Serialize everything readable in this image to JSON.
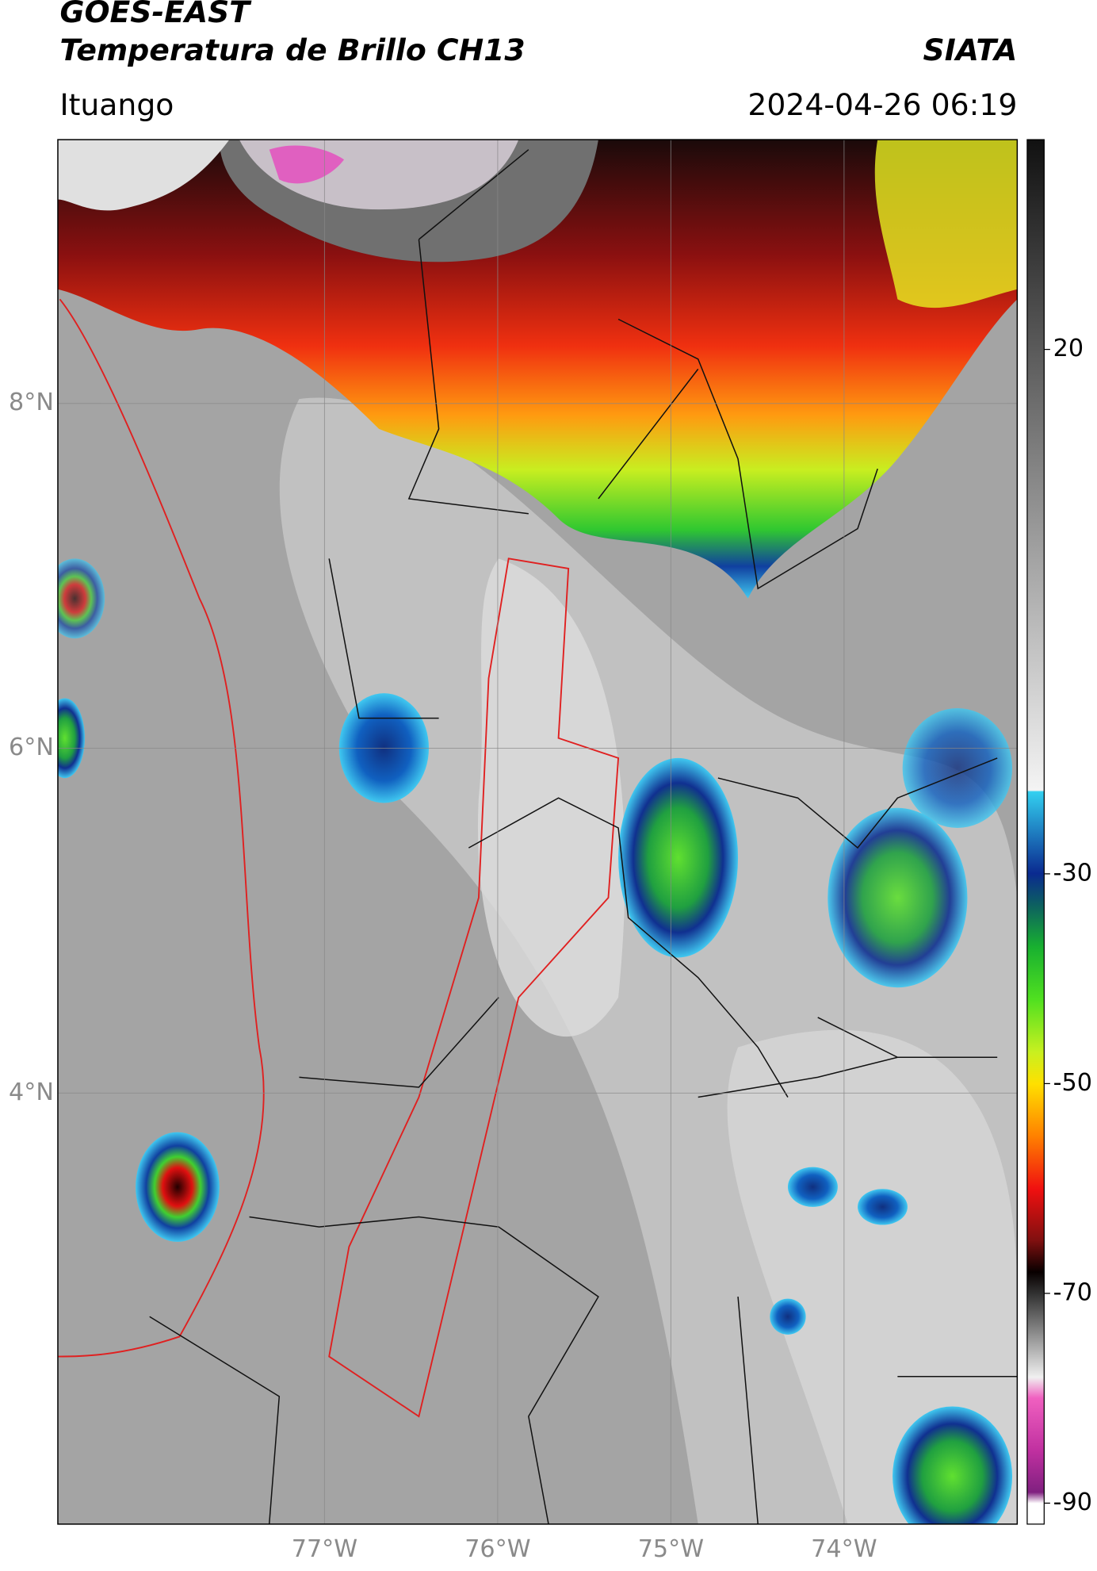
{
  "header": {
    "title": "GOES-EAST",
    "subtitle": "Temperatura de Brillo CH13",
    "brand": "SIATA",
    "location": "Ituango",
    "datetime": "2024-04-26 06:19"
  },
  "map": {
    "lon_range": [
      -78.54,
      -73.0
    ],
    "lat_range": [
      1.5,
      9.53
    ],
    "lat_ticks": [
      {
        "value": 8,
        "label": "8°N"
      },
      {
        "value": 6,
        "label": "6°N"
      },
      {
        "value": 4,
        "label": "4°N"
      }
    ],
    "lon_ticks": [
      {
        "value": -77,
        "label": "77°W"
      },
      {
        "value": -76,
        "label": "76°W"
      },
      {
        "value": -75,
        "label": "75°W"
      },
      {
        "value": -74,
        "label": "74°W"
      }
    ]
  },
  "colorbar": {
    "range": [
      -92,
      40
    ],
    "ticks": [
      20,
      -30,
      -50,
      -70,
      -90
    ]
  }
}
